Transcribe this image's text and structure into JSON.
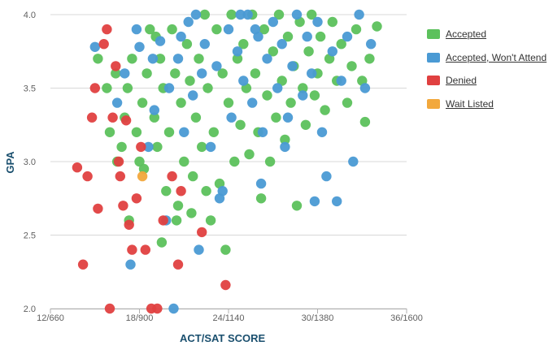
{
  "chart_data": {
    "type": "scatter",
    "title": "",
    "xlabel": "ACT/SAT SCORE",
    "ylabel": "GPA",
    "xlim": [
      12,
      36
    ],
    "ylim": [
      2.0,
      4.0
    ],
    "x_ticks": [
      12,
      18,
      24,
      30,
      36
    ],
    "x_tick_labels": [
      "12/660",
      "18/900",
      "24/1140",
      "30/1380",
      "36/1600"
    ],
    "y_ticks": [
      2.0,
      2.5,
      3.0,
      3.5,
      4.0
    ],
    "y_tick_labels": [
      "2.0",
      "2.5",
      "3.0",
      "3.5",
      "4.0"
    ],
    "grid": "horizontal",
    "legend_position": "right",
    "series": [
      {
        "name": "Accepted",
        "color": "#5cc15c",
        "points": [
          [
            15.2,
            3.7
          ],
          [
            15.8,
            3.5
          ],
          [
            16,
            3.2
          ],
          [
            16.4,
            3.6
          ],
          [
            16.8,
            3.1
          ],
          [
            17,
            3.3
          ],
          [
            17.2,
            3.5
          ],
          [
            17.5,
            3.7
          ],
          [
            17.8,
            3.2
          ],
          [
            18,
            3.0
          ],
          [
            18.2,
            3.4
          ],
          [
            18.5,
            3.6
          ],
          [
            18.7,
            3.9
          ],
          [
            19,
            3.3
          ],
          [
            19.2,
            3.1
          ],
          [
            19.4,
            3.7
          ],
          [
            19.6,
            3.5
          ],
          [
            19.8,
            2.8
          ],
          [
            20,
            3.2
          ],
          [
            20.2,
            3.9
          ],
          [
            20.4,
            3.6
          ],
          [
            20.6,
            2.7
          ],
          [
            20.8,
            3.4
          ],
          [
            21,
            3.0
          ],
          [
            21.2,
            3.8
          ],
          [
            21.4,
            3.55
          ],
          [
            21.6,
            2.9
          ],
          [
            21.8,
            3.3
          ],
          [
            22,
            3.7
          ],
          [
            22.2,
            3.1
          ],
          [
            22.4,
            4.0
          ],
          [
            22.6,
            3.5
          ],
          [
            22.8,
            2.6
          ],
          [
            23,
            3.2
          ],
          [
            23.2,
            3.9
          ],
          [
            23.4,
            2.85
          ],
          [
            23.6,
            3.6
          ],
          [
            23.8,
            2.4
          ],
          [
            24,
            3.4
          ],
          [
            24.2,
            4.0
          ],
          [
            24.4,
            3.0
          ],
          [
            24.6,
            3.7
          ],
          [
            24.8,
            3.25
          ],
          [
            25,
            3.8
          ],
          [
            25.2,
            3.5
          ],
          [
            25.4,
            3.05
          ],
          [
            25.6,
            4.0
          ],
          [
            25.8,
            3.6
          ],
          [
            26,
            3.2
          ],
          [
            26.2,
            2.75
          ],
          [
            26.4,
            3.9
          ],
          [
            26.6,
            3.45
          ],
          [
            26.8,
            3.0
          ],
          [
            27,
            3.75
          ],
          [
            27.2,
            3.3
          ],
          [
            27.4,
            4.0
          ],
          [
            27.6,
            3.55
          ],
          [
            27.8,
            3.15
          ],
          [
            28,
            3.85
          ],
          [
            28.2,
            3.4
          ],
          [
            28.4,
            3.65
          ],
          [
            28.6,
            2.7
          ],
          [
            28.8,
            3.95
          ],
          [
            29,
            3.5
          ],
          [
            29.2,
            3.25
          ],
          [
            29.4,
            3.75
          ],
          [
            29.6,
            4.0
          ],
          [
            29.8,
            3.45
          ],
          [
            30,
            3.6
          ],
          [
            30.2,
            3.85
          ],
          [
            30.5,
            3.35
          ],
          [
            30.8,
            3.7
          ],
          [
            31,
            3.95
          ],
          [
            31.3,
            3.55
          ],
          [
            31.6,
            3.8
          ],
          [
            32,
            3.4
          ],
          [
            32.3,
            3.65
          ],
          [
            32.6,
            3.9
          ],
          [
            33,
            3.55
          ],
          [
            33.2,
            3.27
          ],
          [
            33.5,
            3.7
          ],
          [
            34,
            3.92
          ],
          [
            16.5,
            3.0
          ],
          [
            17.3,
            2.6
          ],
          [
            18.3,
            2.95
          ],
          [
            19.5,
            2.45
          ],
          [
            20.5,
            2.6
          ],
          [
            21.5,
            2.65
          ],
          [
            22.5,
            2.8
          ],
          [
            19.1,
            3.85
          ]
        ]
      },
      {
        "name": "Accepted, Won't Attend",
        "color": "#4a9ad4",
        "points": [
          [
            15,
            3.78
          ],
          [
            16.5,
            3.4
          ],
          [
            17,
            3.6
          ],
          [
            17.4,
            2.3
          ],
          [
            17.8,
            3.9
          ],
          [
            18,
            3.78
          ],
          [
            18.6,
            3.1
          ],
          [
            19,
            3.35
          ],
          [
            19.4,
            3.82
          ],
          [
            19.8,
            2.6
          ],
          [
            20,
            3.5
          ],
          [
            20.3,
            2.0
          ],
          [
            20.6,
            3.7
          ],
          [
            21,
            3.2
          ],
          [
            21.3,
            3.95
          ],
          [
            21.6,
            3.45
          ],
          [
            22,
            2.4
          ],
          [
            22.4,
            3.8
          ],
          [
            22.8,
            3.1
          ],
          [
            23.2,
            3.65
          ],
          [
            23.6,
            2.8
          ],
          [
            24,
            3.9
          ],
          [
            24.2,
            3.3
          ],
          [
            24.6,
            3.75
          ],
          [
            25,
            3.55
          ],
          [
            25.3,
            4.0
          ],
          [
            25.6,
            3.4
          ],
          [
            26,
            3.85
          ],
          [
            26.3,
            3.2
          ],
          [
            26.6,
            3.7
          ],
          [
            27,
            3.95
          ],
          [
            27.3,
            3.5
          ],
          [
            27.6,
            3.8
          ],
          [
            28,
            3.3
          ],
          [
            28.3,
            3.65
          ],
          [
            28.6,
            4.0
          ],
          [
            29,
            3.45
          ],
          [
            29.3,
            3.85
          ],
          [
            29.6,
            3.6
          ],
          [
            30,
            3.95
          ],
          [
            30.3,
            3.2
          ],
          [
            30.6,
            2.9
          ],
          [
            31,
            3.75
          ],
          [
            31.3,
            2.73
          ],
          [
            31.6,
            3.55
          ],
          [
            32,
            3.85
          ],
          [
            32.4,
            3.0
          ],
          [
            32.8,
            4.0
          ],
          [
            33.2,
            3.5
          ],
          [
            33.6,
            3.8
          ],
          [
            29.8,
            2.73
          ],
          [
            26.2,
            2.85
          ],
          [
            23.4,
            2.75
          ],
          [
            27.8,
            3.1
          ],
          [
            25.8,
            3.9
          ],
          [
            24.8,
            4.0
          ],
          [
            22.2,
            3.6
          ],
          [
            21.8,
            4.0
          ],
          [
            20.8,
            3.85
          ],
          [
            18.9,
            3.7
          ]
        ]
      },
      {
        "name": "Denied",
        "color": "#e04040",
        "points": [
          [
            13.8,
            2.96
          ],
          [
            14.2,
            2.3
          ],
          [
            14.5,
            2.9
          ],
          [
            14.8,
            3.3
          ],
          [
            15,
            3.5
          ],
          [
            15.2,
            2.68
          ],
          [
            15.6,
            3.8
          ],
          [
            16,
            2.0
          ],
          [
            16.2,
            3.3
          ],
          [
            16.4,
            3.65
          ],
          [
            16.7,
            2.9
          ],
          [
            16.9,
            2.7
          ],
          [
            17.1,
            3.28
          ],
          [
            17.3,
            2.57
          ],
          [
            17.5,
            2.4
          ],
          [
            17.8,
            2.75
          ],
          [
            18.1,
            3.1
          ],
          [
            18.4,
            2.4
          ],
          [
            18.8,
            2.0
          ],
          [
            19.2,
            2.0
          ],
          [
            19.6,
            2.6
          ],
          [
            20.2,
            2.9
          ],
          [
            20.6,
            2.3
          ],
          [
            20.8,
            2.8
          ],
          [
            22.2,
            2.52
          ],
          [
            23.8,
            2.16
          ],
          [
            15.8,
            3.9
          ],
          [
            16.6,
            3.0
          ]
        ]
      },
      {
        "name": "Wait Listed",
        "color": "#f2a83c",
        "points": [
          [
            18.2,
            2.9
          ]
        ]
      }
    ]
  }
}
